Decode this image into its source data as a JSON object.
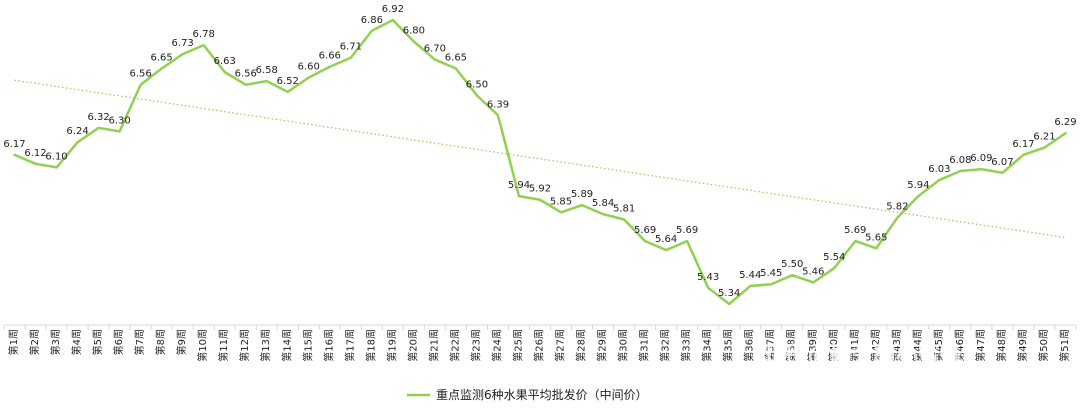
{
  "chart_data": {
    "type": "line",
    "categories": [
      "第1周",
      "第2周",
      "第3周",
      "第4周",
      "第5周",
      "第6周",
      "第7周",
      "第8周",
      "第9周",
      "第10周",
      "第11周",
      "第12周",
      "第13周",
      "第14周",
      "第15周",
      "第16周",
      "第17周",
      "第18周",
      "第19周",
      "第20周",
      "第21周",
      "第22周",
      "第23周",
      "第24周",
      "第25周",
      "第26周",
      "第27周",
      "第28周",
      "第29周",
      "第30周",
      "第31周",
      "第32周",
      "第33周",
      "第34周",
      "第35周",
      "第36周",
      "第37周",
      "第38周",
      "第39周",
      "第40周",
      "第41周",
      "第42周",
      "第43周",
      "第44周",
      "第45周",
      "第46周",
      "第47周",
      "第48周",
      "第49周",
      "第50周",
      "第51周"
    ],
    "series": [
      {
        "name": "重点监测6种水果平均批发价（中间价）",
        "color": "#92d050",
        "values": [
          6.17,
          6.12,
          6.1,
          6.24,
          6.32,
          6.3,
          6.56,
          6.65,
          6.73,
          6.78,
          6.63,
          6.56,
          6.58,
          6.52,
          6.6,
          6.66,
          6.71,
          6.86,
          6.92,
          6.8,
          6.7,
          6.65,
          6.5,
          6.39,
          5.94,
          5.92,
          5.85,
          5.89,
          5.84,
          5.81,
          5.69,
          5.64,
          5.69,
          5.43,
          5.34,
          5.44,
          5.45,
          5.5,
          5.46,
          5.54,
          5.69,
          5.65,
          5.82,
          5.94,
          6.03,
          6.08,
          6.09,
          6.07,
          6.17,
          6.21,
          6.29
        ]
      }
    ],
    "trendline": {
      "style": "dotted",
      "color": "#92d050"
    },
    "data_labels": true,
    "grid": false,
    "legend_position": "bottom"
  },
  "watermark": "知乎 @勤劳的小蜜蜂"
}
